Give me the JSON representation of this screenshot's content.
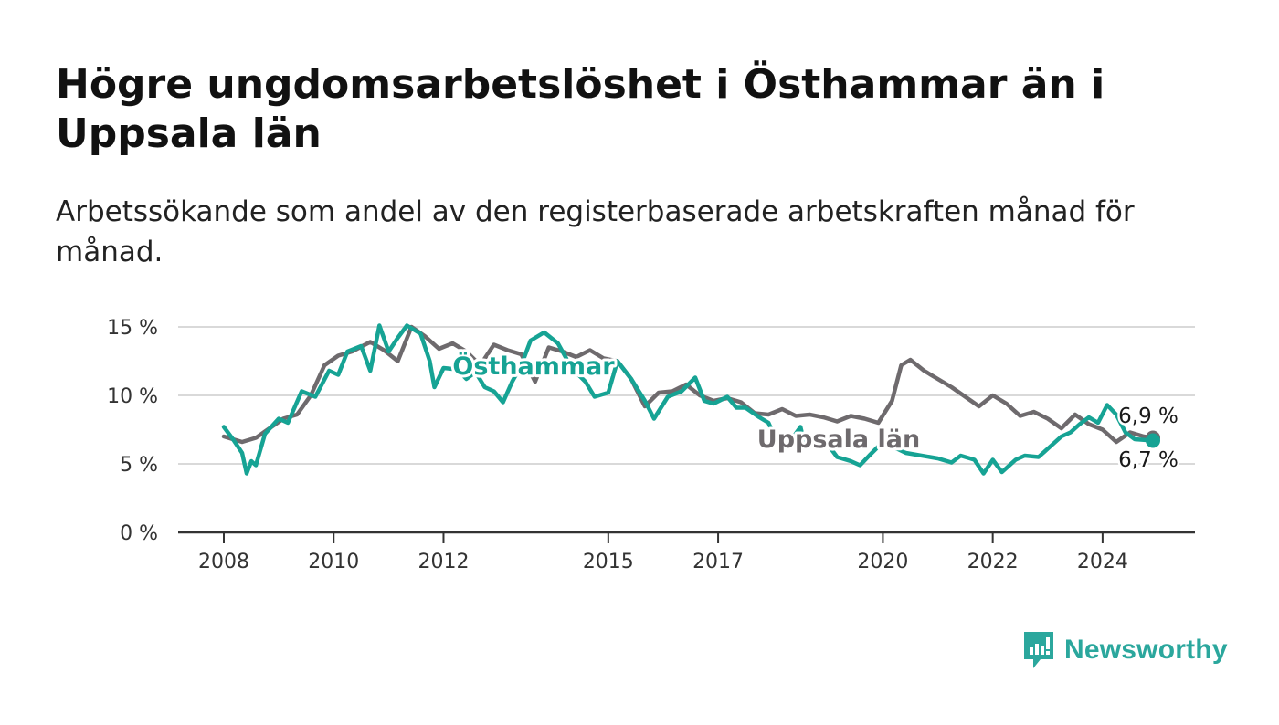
{
  "title": "Högre ungdomsarbetslöshet i Östhammar än i Uppsala län",
  "subtitle": "Arbetssökande som andel av den registerbaserade arbetskraften månad för månad.",
  "brand": {
    "name": "Newsworthy",
    "color": "#2ba79d"
  },
  "chart_data": {
    "type": "line",
    "x_start": "2008-01",
    "x_end": "2024-12",
    "x_ticks": [
      "2008",
      "2010",
      "2012",
      "2015",
      "2017",
      "2020",
      "2022",
      "2024"
    ],
    "y_ticks": [
      "0 %",
      "5 %",
      "10 %",
      "15 %"
    ],
    "ylim": [
      0,
      15
    ],
    "grid": true,
    "series": [
      {
        "name": "Östhammar",
        "color": "#16a394",
        "end_label": "6,7 %",
        "values": [
          {
            "x": "2008-01",
            "y": 7.7
          },
          {
            "x": "2008-03",
            "y": 6.8
          },
          {
            "x": "2008-05",
            "y": 5.8
          },
          {
            "x": "2008-06",
            "y": 4.3
          },
          {
            "x": "2008-07",
            "y": 5.2
          },
          {
            "x": "2008-08",
            "y": 4.9
          },
          {
            "x": "2008-10",
            "y": 7.2
          },
          {
            "x": "2009-01",
            "y": 8.3
          },
          {
            "x": "2009-03",
            "y": 8.0
          },
          {
            "x": "2009-06",
            "y": 10.3
          },
          {
            "x": "2009-09",
            "y": 9.9
          },
          {
            "x": "2009-12",
            "y": 11.8
          },
          {
            "x": "2010-02",
            "y": 11.5
          },
          {
            "x": "2010-04",
            "y": 13.2
          },
          {
            "x": "2010-07",
            "y": 13.6
          },
          {
            "x": "2010-09",
            "y": 11.8
          },
          {
            "x": "2010-11",
            "y": 15.1
          },
          {
            "x": "2011-01",
            "y": 13.2
          },
          {
            "x": "2011-03",
            "y": 14.2
          },
          {
            "x": "2011-05",
            "y": 15.1
          },
          {
            "x": "2011-08",
            "y": 14.5
          },
          {
            "x": "2011-10",
            "y": 12.5
          },
          {
            "x": "2011-11",
            "y": 10.6
          },
          {
            "x": "2012-01",
            "y": 12.0
          },
          {
            "x": "2012-04",
            "y": 11.9
          },
          {
            "x": "2012-06",
            "y": 11.2
          },
          {
            "x": "2012-08",
            "y": 11.7
          },
          {
            "x": "2012-10",
            "y": 10.6
          },
          {
            "x": "2012-12",
            "y": 10.3
          },
          {
            "x": "2013-02",
            "y": 9.5
          },
          {
            "x": "2013-04",
            "y": 11.0
          },
          {
            "x": "2013-06",
            "y": 12.2
          },
          {
            "x": "2013-08",
            "y": 14.0
          },
          {
            "x": "2013-11",
            "y": 14.6
          },
          {
            "x": "2014-02",
            "y": 13.8
          },
          {
            "x": "2014-05",
            "y": 12.0
          },
          {
            "x": "2014-08",
            "y": 11.0
          },
          {
            "x": "2014-10",
            "y": 9.9
          },
          {
            "x": "2015-01",
            "y": 10.2
          },
          {
            "x": "2015-03",
            "y": 12.5
          },
          {
            "x": "2015-06",
            "y": 11.2
          },
          {
            "x": "2015-09",
            "y": 9.6
          },
          {
            "x": "2015-11",
            "y": 8.3
          },
          {
            "x": "2016-02",
            "y": 9.9
          },
          {
            "x": "2016-05",
            "y": 10.3
          },
          {
            "x": "2016-08",
            "y": 11.3
          },
          {
            "x": "2016-10",
            "y": 9.6
          },
          {
            "x": "2016-12",
            "y": 9.4
          },
          {
            "x": "2017-03",
            "y": 9.9
          },
          {
            "x": "2017-05",
            "y": 9.1
          },
          {
            "x": "2017-07",
            "y": 9.1
          },
          {
            "x": "2017-10",
            "y": 8.4
          },
          {
            "x": "2017-12",
            "y": 8.0
          },
          {
            "x": "2018-02",
            "y": 6.5
          },
          {
            "x": "2018-04",
            "y": 6.3
          },
          {
            "x": "2018-07",
            "y": 7.7
          },
          {
            "x": "2018-08",
            "y": 6.3
          },
          {
            "x": "2018-11",
            "y": 6.5
          },
          {
            "x": "2019-01",
            "y": 6.4
          },
          {
            "x": "2019-03",
            "y": 5.5
          },
          {
            "x": "2019-06",
            "y": 5.2
          },
          {
            "x": "2019-08",
            "y": 4.9
          },
          {
            "x": "2019-10",
            "y": 5.6
          },
          {
            "x": "2020-01",
            "y": 6.6
          },
          {
            "x": "2020-06",
            "y": 5.8
          },
          {
            "x": "2021-01",
            "y": 5.4
          },
          {
            "x": "2021-04",
            "y": 5.1
          },
          {
            "x": "2021-06",
            "y": 5.6
          },
          {
            "x": "2021-09",
            "y": 5.3
          },
          {
            "x": "2021-11",
            "y": 4.3
          },
          {
            "x": "2022-01",
            "y": 5.3
          },
          {
            "x": "2022-03",
            "y": 4.4
          },
          {
            "x": "2022-06",
            "y": 5.3
          },
          {
            "x": "2022-08",
            "y": 5.6
          },
          {
            "x": "2022-11",
            "y": 5.5
          },
          {
            "x": "2023-01",
            "y": 6.1
          },
          {
            "x": "2023-04",
            "y": 7.0
          },
          {
            "x": "2023-06",
            "y": 7.3
          },
          {
            "x": "2023-08",
            "y": 7.9
          },
          {
            "x": "2023-10",
            "y": 8.4
          },
          {
            "x": "2023-12",
            "y": 8.0
          },
          {
            "x": "2024-02",
            "y": 9.3
          },
          {
            "x": "2024-04",
            "y": 8.6
          },
          {
            "x": "2024-06",
            "y": 7.3
          },
          {
            "x": "2024-08",
            "y": 6.8
          },
          {
            "x": "2024-12",
            "y": 6.7
          }
        ]
      },
      {
        "name": "Uppsala län",
        "color": "#6e6a6d",
        "end_label": "6,9 %",
        "values": [
          {
            "x": "2008-01",
            "y": 7.0
          },
          {
            "x": "2008-05",
            "y": 6.6
          },
          {
            "x": "2008-08",
            "y": 6.9
          },
          {
            "x": "2008-11",
            "y": 7.6
          },
          {
            "x": "2009-02",
            "y": 8.3
          },
          {
            "x": "2009-05",
            "y": 8.6
          },
          {
            "x": "2009-08",
            "y": 10.0
          },
          {
            "x": "2009-11",
            "y": 12.2
          },
          {
            "x": "2010-02",
            "y": 12.9
          },
          {
            "x": "2010-05",
            "y": 13.2
          },
          {
            "x": "2010-09",
            "y": 13.9
          },
          {
            "x": "2010-12",
            "y": 13.3
          },
          {
            "x": "2011-03",
            "y": 12.5
          },
          {
            "x": "2011-06",
            "y": 15.0
          },
          {
            "x": "2011-09",
            "y": 14.3
          },
          {
            "x": "2011-12",
            "y": 13.4
          },
          {
            "x": "2012-03",
            "y": 13.8
          },
          {
            "x": "2012-06",
            "y": 13.2
          },
          {
            "x": "2012-09",
            "y": 12.2
          },
          {
            "x": "2012-12",
            "y": 13.7
          },
          {
            "x": "2013-03",
            "y": 13.3
          },
          {
            "x": "2013-06",
            "y": 13.0
          },
          {
            "x": "2013-09",
            "y": 11.0
          },
          {
            "x": "2013-12",
            "y": 13.5
          },
          {
            "x": "2014-03",
            "y": 13.2
          },
          {
            "x": "2014-06",
            "y": 12.8
          },
          {
            "x": "2014-09",
            "y": 13.3
          },
          {
            "x": "2014-12",
            "y": 12.7
          },
          {
            "x": "2015-03",
            "y": 12.5
          },
          {
            "x": "2015-06",
            "y": 11.2
          },
          {
            "x": "2015-09",
            "y": 9.2
          },
          {
            "x": "2015-12",
            "y": 10.2
          },
          {
            "x": "2016-03",
            "y": 10.3
          },
          {
            "x": "2016-06",
            "y": 10.8
          },
          {
            "x": "2016-09",
            "y": 10.0
          },
          {
            "x": "2016-12",
            "y": 9.6
          },
          {
            "x": "2017-03",
            "y": 9.8
          },
          {
            "x": "2017-06",
            "y": 9.5
          },
          {
            "x": "2017-09",
            "y": 8.7
          },
          {
            "x": "2017-12",
            "y": 8.6
          },
          {
            "x": "2018-03",
            "y": 9.0
          },
          {
            "x": "2018-06",
            "y": 8.5
          },
          {
            "x": "2018-09",
            "y": 8.6
          },
          {
            "x": "2018-12",
            "y": 8.4
          },
          {
            "x": "2019-03",
            "y": 8.1
          },
          {
            "x": "2019-06",
            "y": 8.5
          },
          {
            "x": "2019-09",
            "y": 8.3
          },
          {
            "x": "2019-12",
            "y": 8.0
          },
          {
            "x": "2020-03",
            "y": 9.6
          },
          {
            "x": "2020-05",
            "y": 12.2
          },
          {
            "x": "2020-07",
            "y": 12.6
          },
          {
            "x": "2020-10",
            "y": 11.8
          },
          {
            "x": "2021-01",
            "y": 11.2
          },
          {
            "x": "2021-04",
            "y": 10.6
          },
          {
            "x": "2021-07",
            "y": 9.9
          },
          {
            "x": "2021-10",
            "y": 9.2
          },
          {
            "x": "2022-01",
            "y": 10.0
          },
          {
            "x": "2022-04",
            "y": 9.4
          },
          {
            "x": "2022-07",
            "y": 8.5
          },
          {
            "x": "2022-10",
            "y": 8.8
          },
          {
            "x": "2023-01",
            "y": 8.3
          },
          {
            "x": "2023-04",
            "y": 7.6
          },
          {
            "x": "2023-07",
            "y": 8.6
          },
          {
            "x": "2023-10",
            "y": 7.9
          },
          {
            "x": "2024-01",
            "y": 7.5
          },
          {
            "x": "2024-04",
            "y": 6.6
          },
          {
            "x": "2024-07",
            "y": 7.3
          },
          {
            "x": "2024-10",
            "y": 7.0
          },
          {
            "x": "2024-12",
            "y": 6.9
          }
        ]
      }
    ]
  }
}
